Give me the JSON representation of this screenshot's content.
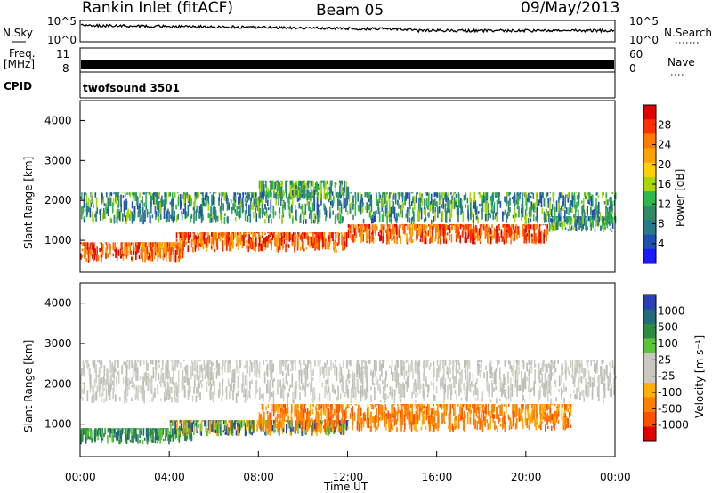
{
  "header": {
    "station": "Rankin Inlet (fitACF)",
    "beam": "Beam 05",
    "date": "09/May/2013"
  },
  "top_panels": {
    "nsky": {
      "label": "N.Sky",
      "ticks": [
        "10^5",
        "10^0"
      ]
    },
    "nsearch": {
      "label": "N.Search",
      "ticks": [
        "10^5",
        "10^0"
      ]
    },
    "freq": {
      "label_line1": "Freq.",
      "label_line2": "[MHz]",
      "ticks": [
        "11",
        "8"
      ]
    },
    "nave": {
      "label": "Nave",
      "ticks": [
        "60",
        "0"
      ]
    },
    "cpid": {
      "label": "CPID",
      "value": "twofsound 3501"
    }
  },
  "panels": {
    "power": {
      "ylabel": "Slant Range [km]",
      "cbar_label": "Power [dB]",
      "cbar_ticks": [
        "28",
        "24",
        "20",
        "16",
        "12",
        "8",
        "4"
      ],
      "cbar_colors": [
        "#e00000",
        "#ff3000",
        "#ff7a00",
        "#ffa300",
        "#ffcf00",
        "#a8d800",
        "#2fb84a",
        "#2e8b64",
        "#267a8a",
        "#1f4fb0",
        "#1a1aff"
      ]
    },
    "velocity": {
      "ylabel": "Slant Range [km]",
      "cbar_label": "Velocity [m s⁻¹]",
      "cbar_ticks": [
        "1000",
        "500",
        "100",
        "25",
        "-25",
        "-100",
        "-500",
        "-1000"
      ],
      "cbar_colors": [
        "#2a3fb5",
        "#1f6b7a",
        "#2e8b3f",
        "#5cc33a",
        "#c8c8c0",
        "#c8c8c0",
        "#ffb000",
        "#ff8000",
        "#ff5000",
        "#e00000"
      ]
    }
  },
  "xaxis": {
    "label": "Time UT",
    "ticks": [
      "00:00",
      "04:00",
      "08:00",
      "12:00",
      "16:00",
      "20:00",
      "00:00"
    ]
  },
  "chart_data": {
    "type": "heatmap",
    "title": "Rankin Inlet (fitACF) Beam 05 09/May/2013",
    "xlabel": "Time UT",
    "ylabel": "Slant Range [km]",
    "x_ticks": [
      "00:00",
      "04:00",
      "08:00",
      "12:00",
      "16:00",
      "20:00",
      "00:00"
    ],
    "xlim_hours": [
      0,
      24
    ],
    "ylim_km": [
      200,
      4500
    ],
    "y_ticks": [
      1000,
      2000,
      3000,
      4000
    ],
    "fields": [
      {
        "name": "Power [dB]",
        "color_scale": [
          4,
          8,
          12,
          16,
          20,
          24,
          28
        ],
        "bands": [
          {
            "t0": 0.0,
            "t1": 4.6,
            "r0": 450,
            "r1": 950,
            "level": "high"
          },
          {
            "t0": 4.3,
            "t1": 12.0,
            "r0": 700,
            "r1": 1200,
            "level": "high"
          },
          {
            "t0": 12.0,
            "t1": 21.0,
            "r0": 900,
            "r1": 1400,
            "level": "high"
          },
          {
            "t0": 21.0,
            "t1": 24.0,
            "r0": 1200,
            "r1": 1600,
            "level": "medium"
          },
          {
            "t0": 0.0,
            "t1": 24.0,
            "r0": 1400,
            "r1": 2200,
            "level": "medium"
          },
          {
            "t0": 8.0,
            "t1": 12.0,
            "r0": 2000,
            "r1": 2500,
            "level": "medium"
          }
        ]
      },
      {
        "name": "Velocity [m s^-1]",
        "color_scale": [
          -1000,
          -500,
          -100,
          -25,
          25,
          100,
          500,
          1000
        ],
        "bands": [
          {
            "t0": 0.0,
            "t1": 5.0,
            "r0": 500,
            "r1": 900,
            "velocity": "positive"
          },
          {
            "t0": 4.0,
            "t1": 12.0,
            "r0": 700,
            "r1": 1100,
            "velocity": "mixed"
          },
          {
            "t0": 8.0,
            "t1": 22.0,
            "r0": 800,
            "r1": 1500,
            "velocity": "negative"
          },
          {
            "t0": 0.0,
            "t1": 24.0,
            "r0": 1500,
            "r1": 2600,
            "velocity": "near-zero"
          }
        ]
      }
    ]
  }
}
